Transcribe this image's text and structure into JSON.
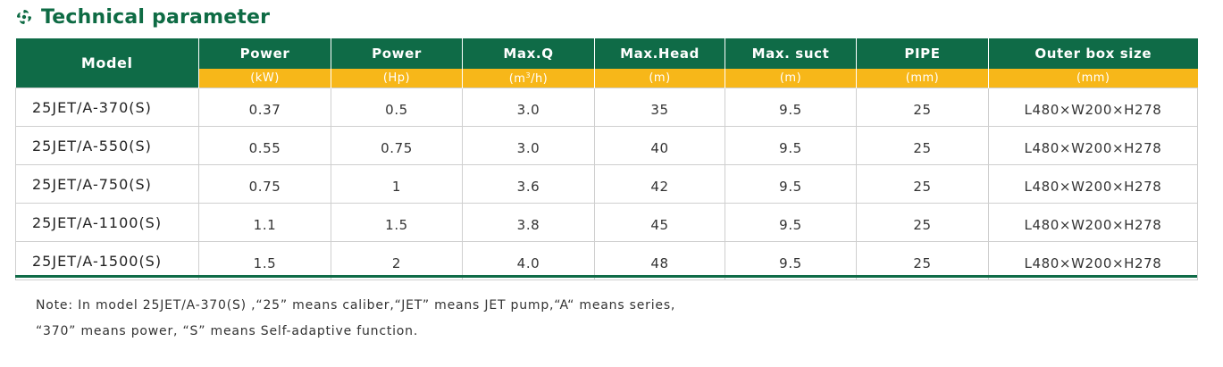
{
  "title": "Technical parameter",
  "icon": "leaf-swirl-icon",
  "colors": {
    "brand_green": "#0f6b47",
    "unit_yellow": "#f7b719",
    "title_green": "#0e6b44"
  },
  "table": {
    "model_header": "Model",
    "columns": [
      {
        "label": "Power",
        "unit": "(kW)"
      },
      {
        "label": "Power",
        "unit": "(Hp)"
      },
      {
        "label": "Max.Q",
        "unit_pre": "(m",
        "unit_sup": "3",
        "unit_post": "/h)"
      },
      {
        "label": "Max.Head",
        "unit": "(m)"
      },
      {
        "label": "Max. suct",
        "unit": "(m)"
      },
      {
        "label": "PIPE",
        "unit": "(mm)"
      },
      {
        "label": "Outer box size",
        "unit": "(mm)"
      }
    ],
    "rows": [
      {
        "model": "25JET/A-370(S)",
        "kw": "0.37",
        "hp": "0.5",
        "q": "3.0",
        "head": "35",
        "suct": "9.5",
        "pipe": "25",
        "box": "L480×W200×H278"
      },
      {
        "model": "25JET/A-550(S)",
        "kw": "0.55",
        "hp": "0.75",
        "q": "3.0",
        "head": "40",
        "suct": "9.5",
        "pipe": "25",
        "box": "L480×W200×H278"
      },
      {
        "model": "25JET/A-750(S)",
        "kw": "0.75",
        "hp": "1",
        "q": "3.6",
        "head": "42",
        "suct": "9.5",
        "pipe": "25",
        "box": "L480×W200×H278"
      },
      {
        "model": "25JET/A-1100(S)",
        "kw": "1.1",
        "hp": "1.5",
        "q": "3.8",
        "head": "45",
        "suct": "9.5",
        "pipe": "25",
        "box": "L480×W200×H278"
      },
      {
        "model": "25JET/A-1500(S)",
        "kw": "1.5",
        "hp": "2",
        "q": "4.0",
        "head": "48",
        "suct": "9.5",
        "pipe": "25",
        "box": "L480×W200×H278"
      }
    ]
  },
  "note": {
    "line1": "Note: In model 25JET/A-370(S) ,“25” means caliber,“JET” means JET pump,“A“ means series,",
    "line2": "“370” means power, “S” means Self-adaptive function."
  }
}
